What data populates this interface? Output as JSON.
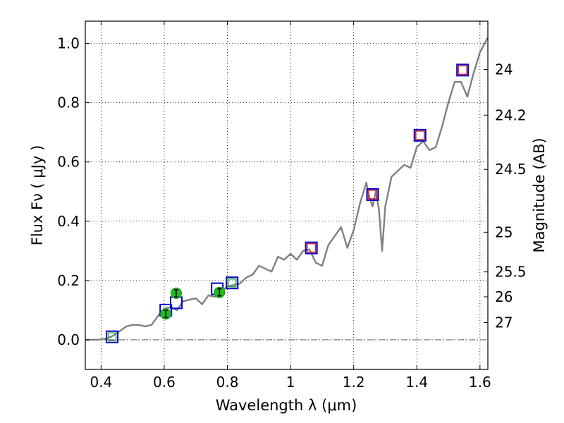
{
  "chart_data": {
    "type": "line",
    "title": "",
    "xlabel": "Wavelength  λ (μm)",
    "ylabel": "Flux  Fν  ( μJy )",
    "ylabel_right": "Magnitude (AB)",
    "xlim": [
      0.35,
      1.625
    ],
    "ylim": [
      -0.1,
      1.075
    ],
    "grid": true,
    "x_ticks": [
      0.4,
      0.6,
      0.8,
      1.0,
      1.2,
      1.4,
      1.6
    ],
    "x_tick_labels": [
      "0.4",
      "0.6",
      "0.8",
      "1",
      "1.2",
      "1.4",
      "1.6"
    ],
    "y_ticks": [
      0.0,
      0.2,
      0.4,
      0.6,
      0.8,
      1.0
    ],
    "y_tick_labels": [
      "0.0",
      "0.2",
      "0.4",
      "0.6",
      "0.8",
      "1.0"
    ],
    "right_ticks": [
      {
        "label": "24",
        "flux": 0.912
      },
      {
        "label": "24.2",
        "flux": 0.758
      },
      {
        "label": "24.5",
        "flux": 0.575
      },
      {
        "label": "25",
        "flux": 0.363
      },
      {
        "label": "25.5",
        "flux": 0.229
      },
      {
        "label": "26",
        "flux": 0.145
      },
      {
        "label": "27",
        "flux": 0.058
      }
    ],
    "series": [
      {
        "type": "line",
        "color": "#808080",
        "x": [
          0.35,
          0.39,
          0.42,
          0.44,
          0.46,
          0.48,
          0.5,
          0.52,
          0.54,
          0.56,
          0.58,
          0.6,
          0.62,
          0.64,
          0.66,
          0.68,
          0.7,
          0.72,
          0.74,
          0.76,
          0.78,
          0.8,
          0.82,
          0.84,
          0.86,
          0.88,
          0.9,
          0.92,
          0.94,
          0.96,
          0.98,
          1.0,
          1.02,
          1.04,
          1.06,
          1.08,
          1.1,
          1.12,
          1.14,
          1.16,
          1.18,
          1.2,
          1.22,
          1.24,
          1.25,
          1.26,
          1.27,
          1.28,
          1.29,
          1.3,
          1.32,
          1.34,
          1.36,
          1.38,
          1.4,
          1.42,
          1.44,
          1.46,
          1.48,
          1.5,
          1.52,
          1.54,
          1.56,
          1.58,
          1.6,
          1.625
        ],
        "y": [
          0.0,
          0.0,
          0.005,
          0.015,
          0.03,
          0.045,
          0.05,
          0.05,
          0.045,
          0.05,
          0.08,
          0.105,
          0.11,
          0.1,
          0.13,
          0.135,
          0.14,
          0.12,
          0.15,
          0.145,
          0.16,
          0.18,
          0.185,
          0.19,
          0.21,
          0.22,
          0.25,
          0.24,
          0.23,
          0.28,
          0.27,
          0.29,
          0.27,
          0.3,
          0.305,
          0.26,
          0.25,
          0.32,
          0.35,
          0.38,
          0.31,
          0.37,
          0.46,
          0.53,
          0.48,
          0.45,
          0.5,
          0.44,
          0.3,
          0.45,
          0.55,
          0.57,
          0.59,
          0.58,
          0.65,
          0.67,
          0.64,
          0.65,
          0.72,
          0.8,
          0.87,
          0.87,
          0.82,
          0.9,
          0.97,
          1.02
        ]
      }
    ],
    "blue_squares": [
      {
        "x": 0.435,
        "y": 0.01
      },
      {
        "x": 0.605,
        "y": 0.1
      },
      {
        "x": 0.638,
        "y": 0.125
      },
      {
        "x": 0.768,
        "y": 0.172
      },
      {
        "x": 0.815,
        "y": 0.192
      },
      {
        "x": 1.066,
        "y": 0.31
      },
      {
        "x": 1.26,
        "y": 0.49
      },
      {
        "x": 1.41,
        "y": 0.69
      },
      {
        "x": 1.545,
        "y": 0.91
      }
    ],
    "red_squares": [
      {
        "x": 1.066,
        "y": 0.31
      },
      {
        "x": 1.26,
        "y": 0.49
      },
      {
        "x": 1.41,
        "y": 0.69
      },
      {
        "x": 1.545,
        "y": 0.91
      }
    ],
    "green_squares": [
      {
        "x": 0.435,
        "y": 0.01
      },
      {
        "x": 0.815,
        "y": 0.192
      }
    ],
    "green_points": [
      {
        "x": 0.605,
        "y": 0.087,
        "err": 0.012
      },
      {
        "x": 0.638,
        "y": 0.157,
        "err": 0.012
      },
      {
        "x": 0.775,
        "y": 0.16,
        "err": 0.012
      }
    ],
    "colors": {
      "line": "#808080",
      "blue": "#0000cc",
      "red": "#dd2222",
      "green_point": "#22bb22",
      "green_square": "#33aa33",
      "grid": "#000000"
    }
  }
}
